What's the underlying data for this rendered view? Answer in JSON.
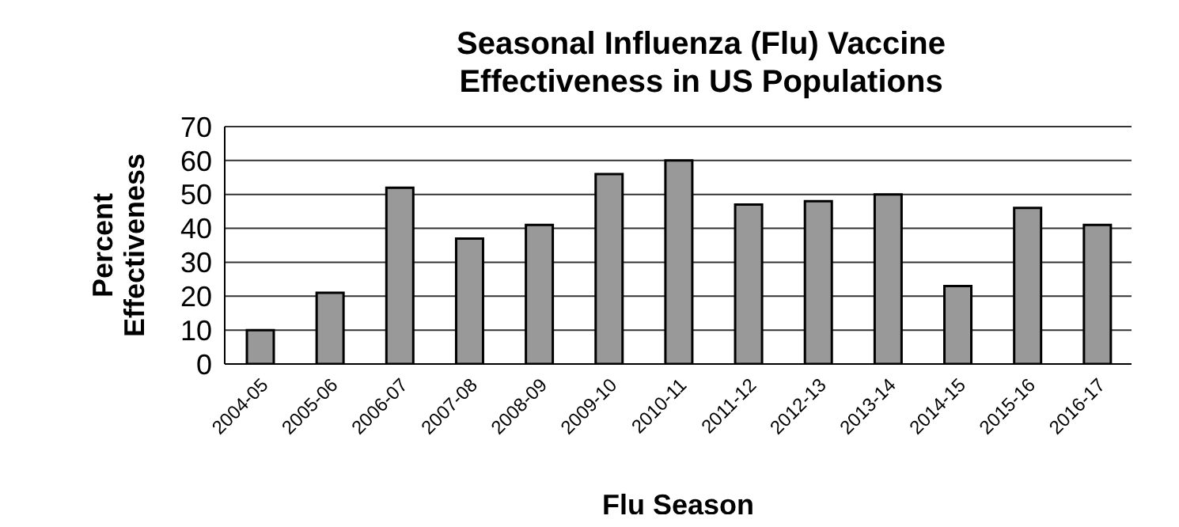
{
  "chart_data": {
    "type": "bar",
    "title": "Seasonal Influenza (Flu) Vaccine Effectiveness in US Populations",
    "xlabel": "Flu Season",
    "ylabel": "Percent Effectiveness",
    "categories": [
      "2004-05",
      "2005-06",
      "2006-07",
      "2007-08",
      "2008-09",
      "2009-10",
      "2010-11",
      "2011-12",
      "2012-13",
      "2013-14",
      "2014-15",
      "2015-16",
      "2016-17"
    ],
    "values": [
      10,
      21,
      52,
      37,
      41,
      56,
      60,
      47,
      48,
      50,
      23,
      46,
      41
    ],
    "color": "#999999",
    "ylim": [
      0,
      70
    ],
    "yticks": [
      0,
      10,
      20,
      30,
      40,
      50,
      60,
      70
    ],
    "grid": "y",
    "legend": false
  }
}
